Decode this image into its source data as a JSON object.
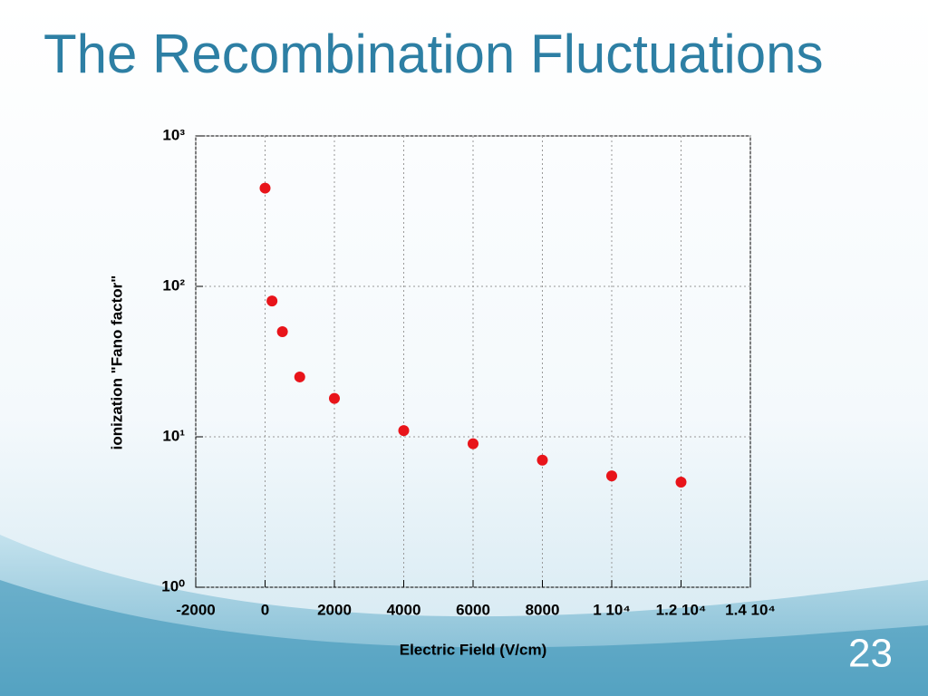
{
  "chart_data": {
    "type": "scatter",
    "title": "The Recombination Fluctuations",
    "x_label": "Electric Field (V/cm)",
    "y_label": "ionization \"Fano factor\"",
    "x": [
      0,
      200,
      500,
      1000,
      2000,
      4000,
      6000,
      8000,
      10000,
      12000
    ],
    "values": [
      450,
      80,
      50,
      25,
      18,
      11,
      9,
      7,
      5.5,
      5
    ],
    "color": "#e8141a",
    "y_log": true,
    "grid": true,
    "xlim": [
      -2000,
      14000
    ],
    "xticks": [
      -2000,
      0,
      2000,
      4000,
      6000,
      8000,
      {
        "value": 10000,
        "label": "1 10⁴"
      },
      {
        "value": 12000,
        "label": "1.2 10⁴"
      },
      {
        "value": 14000,
        "label": "1.4 10⁴"
      }
    ],
    "ylim": [
      1,
      1000
    ],
    "yticks": [
      {
        "value": 1,
        "label": "10⁰"
      },
      {
        "value": 10,
        "label": "10¹"
      },
      {
        "value": 100,
        "label": "10²"
      },
      {
        "value": 1000,
        "label": "10³"
      }
    ]
  },
  "slide_number": "23"
}
